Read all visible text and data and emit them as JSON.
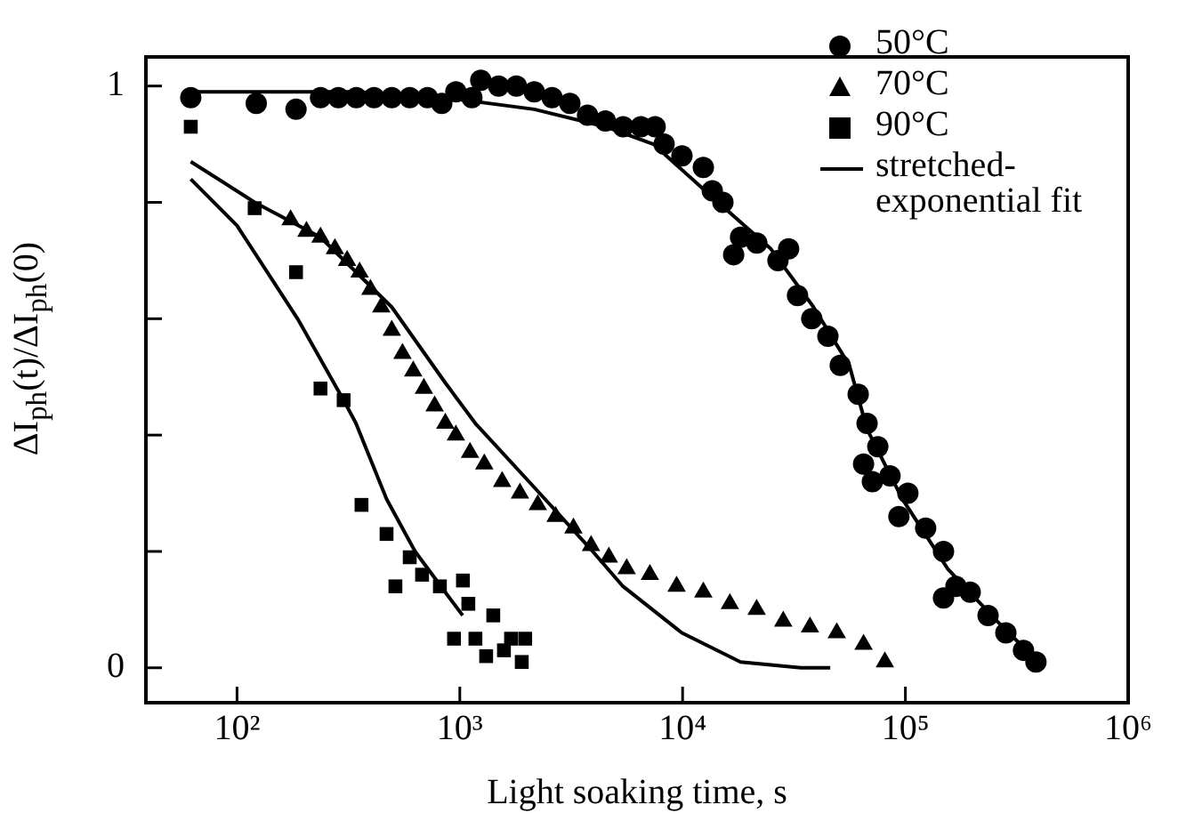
{
  "chart_data": {
    "type": "scatter",
    "xlabel": "Light soaking time, s",
    "ylabel": "ΔI$_{ph}$(t)/ΔI$_{ph}$(0)",
    "log": "x",
    "grid": false,
    "legend": "top right",
    "xlim": [
      39,
      1000000
    ],
    "xticks": [
      {
        "value": 100,
        "label": "10²"
      },
      {
        "value": 1000,
        "label": "10³"
      },
      {
        "value": 10000,
        "label": "10⁴"
      },
      {
        "value": 100000,
        "label": "10⁵"
      },
      {
        "value": 1000000,
        "label": "10⁶"
      }
    ],
    "ylim": [
      -0.06,
      1.05
    ],
    "yticks": [
      0,
      {
        "value": 0.2,
        "label": null
      },
      {
        "value": 0.4,
        "label": null
      },
      {
        "value": 0.6,
        "label": null
      },
      {
        "value": 0.8,
        "label": null
      },
      1
    ],
    "series": [
      {
        "name": "50°C",
        "color": "#000000",
        "marker": "circle",
        "x": [
          62,
          122,
          184,
          237,
          285,
          343,
          412,
          495,
          596,
          716,
          830,
          960,
          1133,
          1242,
          1493,
          1795,
          2158,
          2594,
          3119,
          3745,
          4502,
          5411,
          6501,
          7530,
          8260,
          9930,
          12390,
          13590,
          15170,
          18200,
          16950,
          21530,
          26800,
          29920,
          32800,
          38000,
          44900,
          51000,
          61400,
          67300,
          75200,
          64900,
          71100,
          85300,
          102600,
          93500,
          123300,
          148300,
          168600,
          148300,
          195400,
          235000,
          282500,
          339000,
          385500
        ],
        "values": [
          0.98,
          0.97,
          0.96,
          0.98,
          0.98,
          0.98,
          0.98,
          0.98,
          0.98,
          0.98,
          0.97,
          0.99,
          0.98,
          1.01,
          1.0,
          1.0,
          0.99,
          0.98,
          0.97,
          0.95,
          0.94,
          0.93,
          0.93,
          0.93,
          0.9,
          0.88,
          0.86,
          0.82,
          0.8,
          0.74,
          0.71,
          0.73,
          0.7,
          0.72,
          0.64,
          0.6,
          0.57,
          0.52,
          0.47,
          0.42,
          0.38,
          0.35,
          0.32,
          0.33,
          0.3,
          0.26,
          0.24,
          0.2,
          0.14,
          0.12,
          0.13,
          0.09,
          0.06,
          0.03,
          0.01
        ]
      },
      {
        "name": "70°C",
        "color": "#000000",
        "marker": "triangle",
        "x": [
          174,
          205,
          237,
          275,
          312,
          355,
          397,
          444,
          495,
          553,
          618,
          690,
          771,
          861,
          960,
          1111,
          1288,
          1549,
          1862,
          2239,
          2692,
          3236,
          3882,
          4667,
          5610,
          7130,
          9400,
          12390,
          16300,
          21500,
          28300,
          37300,
          49200,
          64900,
          80900
        ],
        "values": [
          0.77,
          0.75,
          0.74,
          0.72,
          0.7,
          0.68,
          0.65,
          0.62,
          0.58,
          0.54,
          0.51,
          0.48,
          0.45,
          0.42,
          0.4,
          0.37,
          0.35,
          0.32,
          0.3,
          0.28,
          0.26,
          0.24,
          0.21,
          0.19,
          0.17,
          0.16,
          0.14,
          0.13,
          0.11,
          0.1,
          0.08,
          0.07,
          0.06,
          0.04,
          0.01
        ]
      },
      {
        "name": "90°C",
        "color": "#000000",
        "marker": "square",
        "x": [
          62,
          120,
          184,
          237,
          301,
          362,
          469,
          514,
          596,
          677,
          814,
          1033,
          942,
          1092,
          1175,
          1413,
          1313,
          1698,
          1966,
          1897,
          1578
        ],
        "values": [
          0.93,
          0.79,
          0.68,
          0.48,
          0.46,
          0.28,
          0.23,
          0.14,
          0.19,
          0.16,
          0.14,
          0.15,
          0.05,
          0.11,
          0.05,
          0.09,
          0.02,
          0.05,
          0.05,
          0.01,
          0.03
        ]
      },
      {
        "name": "stretched-exponential fit",
        "type": "line",
        "color": "#000000",
        "marker": "none",
        "x": [
          62,
          343,
          860,
          2158,
          4500,
          7400,
          13500,
          24900,
          38700,
          56000,
          67300,
          97000,
          155000,
          258000,
          395000
        ],
        "values": [
          0.99,
          0.99,
          0.98,
          0.96,
          0.93,
          0.9,
          0.81,
          0.72,
          0.62,
          0.52,
          0.41,
          0.29,
          0.17,
          0.08,
          0.01
        ]
      },
      {
        "type": "line",
        "color": "#000000",
        "marker": "none",
        "x": [
          62,
          120,
          237,
          495,
          860,
          1175,
          2160,
          3950,
          5400,
          9930,
          18200,
          34000,
          46000
        ],
        "values": [
          0.87,
          0.8,
          0.74,
          0.62,
          0.49,
          0.42,
          0.31,
          0.2,
          0.14,
          0.06,
          0.01,
          0.0,
          0.0
        ]
      },
      {
        "type": "line",
        "color": "#000000",
        "marker": "none",
        "x": [
          62,
          100,
          187,
          301,
          342,
          469,
          630,
          860,
          1030
        ],
        "values": [
          0.84,
          0.76,
          0.6,
          0.46,
          0.42,
          0.29,
          0.2,
          0.13,
          0.09
        ]
      }
    ]
  }
}
